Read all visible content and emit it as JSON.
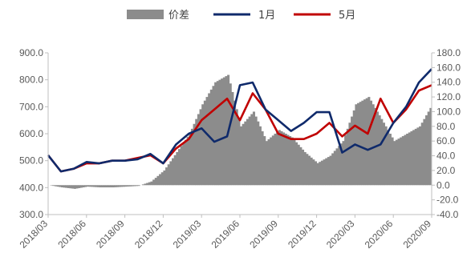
{
  "chart_data": {
    "type": "line",
    "title": "",
    "xlabel": "",
    "ylabel": "",
    "x_tick_labels": [
      "2018/03",
      "2018/06",
      "2018/09",
      "2018/12",
      "2019/03",
      "2019/06",
      "2019/09",
      "2019/12",
      "2020/03",
      "2020/06",
      "2020/09"
    ],
    "y_left": {
      "min": 300,
      "max": 900,
      "step": 100,
      "tick_labels": [
        "300.0",
        "400.0",
        "500.0",
        "600.0",
        "700.0",
        "800.0",
        "900.0"
      ]
    },
    "y_right": {
      "min": -40,
      "max": 180,
      "step": 20,
      "tick_labels": [
        "-40.0",
        "-20.0",
        "0.0",
        "20.0",
        "40.0",
        "60.0",
        "80.0",
        "100.0",
        "120.0",
        "140.0",
        "160.0",
        "180.0"
      ]
    },
    "grid": false,
    "legend_position": "top",
    "legend": [
      {
        "name": "价差",
        "color": "#8c8c8c",
        "kind": "area"
      },
      {
        "name": "1月",
        "color": "#0f2a6b",
        "kind": "line"
      },
      {
        "name": "5月",
        "color": "#c00000",
        "kind": "line"
      }
    ],
    "time": [
      "2018-03",
      "2018-04",
      "2018-05",
      "2018-06",
      "2018-07",
      "2018-08",
      "2018-09",
      "2018-10",
      "2018-11",
      "2018-12",
      "2019-01",
      "2019-02",
      "2019-03",
      "2019-04",
      "2019-05",
      "2019-06",
      "2019-07",
      "2019-08",
      "2019-09",
      "2019-10",
      "2019-11",
      "2019-12",
      "2020-01",
      "2020-02",
      "2020-03",
      "2020-04",
      "2020-05",
      "2020-06",
      "2020-07",
      "2020-08",
      "2020-09"
    ],
    "series": [
      {
        "name": "价差",
        "axis": "right",
        "kind": "area",
        "color": "#8c8c8c",
        "values": [
          0,
          -3,
          -5,
          -2,
          -3,
          -3,
          -2,
          -1,
          5,
          20,
          45,
          70,
          110,
          140,
          150,
          80,
          100,
          60,
          75,
          65,
          45,
          30,
          40,
          60,
          110,
          120,
          90,
          60,
          70,
          80,
          110
        ]
      },
      {
        "name": "1月",
        "axis": "left",
        "kind": "line",
        "color": "#0f2a6b",
        "values": [
          520,
          460,
          470,
          495,
          490,
          500,
          500,
          505,
          525,
          490,
          560,
          600,
          620,
          570,
          590,
          780,
          790,
          690,
          650,
          610,
          640,
          680,
          680,
          530,
          560,
          540,
          560,
          640,
          700,
          790,
          840
        ]
      },
      {
        "name": "5月",
        "axis": "left",
        "kind": "line",
        "color": "#c00000",
        "values": [
          520,
          460,
          470,
          490,
          490,
          500,
          500,
          510,
          520,
          490,
          545,
          580,
          650,
          690,
          730,
          650,
          750,
          690,
          600,
          580,
          580,
          600,
          640,
          590,
          630,
          600,
          730,
          640,
          690,
          760,
          780
        ]
      }
    ]
  }
}
